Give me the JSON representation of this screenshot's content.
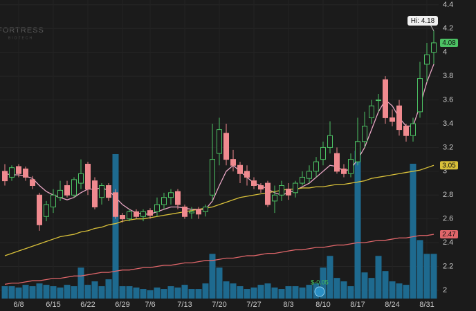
{
  "chart_data": {
    "type": "candlestick",
    "watermark": "FORTRESS",
    "watermark_sub": "BIOTECH",
    "categories": [
      null,
      null,
      "6/8",
      null,
      null,
      null,
      null,
      "6/15",
      null,
      null,
      null,
      null,
      "6/22",
      null,
      null,
      null,
      null,
      "6/29",
      null,
      null,
      null,
      "7/6",
      null,
      null,
      null,
      null,
      "7/13",
      null,
      null,
      null,
      null,
      "7/20",
      null,
      null,
      null,
      null,
      "7/27",
      null,
      null,
      null,
      null,
      "8/3",
      null,
      null,
      null,
      null,
      "8/10",
      null,
      null,
      null,
      null,
      "8/17",
      null,
      null,
      null,
      null,
      "8/24",
      null,
      null,
      null,
      null,
      "8/31",
      null
    ],
    "open": [
      3.0,
      2.95,
      3.04,
      3.02,
      2.93,
      2.8,
      2.62,
      2.7,
      2.78,
      2.88,
      2.8,
      2.9,
      3.06,
      2.92,
      2.78,
      2.88,
      2.82,
      2.63,
      2.6,
      2.66,
      2.62,
      2.67,
      2.66,
      2.72,
      2.78,
      2.83,
      2.7,
      2.65,
      2.68,
      2.66,
      2.8,
      3.15,
      3.32,
      3.1,
      3.05,
      3.0,
      2.92,
      2.88,
      2.9,
      2.75,
      2.8,
      2.85,
      2.82,
      2.9,
      2.94,
      3.0,
      3.1,
      3.2,
      3.15,
      3.02,
      2.98,
      3.08,
      3.25,
      3.45,
      3.6,
      3.77,
      3.45,
      3.55,
      3.38,
      3.3,
      3.5,
      3.9,
      4.0
    ],
    "high": [
      3.06,
      3.05,
      3.06,
      3.04,
      2.96,
      2.82,
      2.75,
      2.85,
      2.92,
      2.92,
      2.95,
      3.1,
      3.08,
      2.95,
      2.9,
      2.9,
      2.85,
      2.65,
      2.68,
      2.68,
      2.68,
      2.69,
      2.78,
      2.82,
      2.85,
      2.85,
      2.72,
      2.7,
      2.7,
      2.72,
      3.4,
      3.45,
      3.4,
      3.18,
      3.08,
      3.05,
      2.95,
      2.9,
      2.92,
      2.88,
      2.92,
      2.9,
      2.92,
      3.0,
      3.05,
      3.12,
      3.25,
      3.42,
      3.2,
      3.06,
      3.15,
      3.45,
      3.5,
      3.6,
      3.65,
      3.8,
      3.52,
      3.6,
      3.4,
      3.45,
      3.92,
      4.08,
      4.18
    ],
    "low": [
      2.88,
      2.92,
      2.95,
      2.92,
      2.85,
      2.5,
      2.58,
      2.65,
      2.75,
      2.78,
      2.78,
      2.85,
      2.8,
      2.68,
      2.72,
      2.75,
      2.6,
      2.57,
      2.58,
      2.6,
      2.58,
      2.6,
      2.62,
      2.68,
      2.72,
      2.68,
      2.6,
      2.6,
      2.6,
      2.62,
      2.75,
      3.05,
      3.05,
      3.0,
      2.9,
      2.88,
      2.85,
      2.82,
      2.7,
      2.65,
      2.75,
      2.76,
      2.78,
      2.88,
      2.9,
      2.95,
      3.05,
      3.15,
      2.98,
      2.95,
      2.95,
      3.05,
      3.2,
      3.4,
      3.5,
      3.4,
      3.38,
      3.3,
      3.25,
      3.25,
      3.45,
      3.75,
      3.9
    ],
    "close": [
      2.92,
      3.03,
      2.98,
      2.95,
      2.88,
      2.55,
      2.72,
      2.8,
      2.84,
      2.8,
      2.93,
      2.98,
      2.85,
      2.7,
      2.88,
      2.78,
      2.62,
      2.6,
      2.66,
      2.62,
      2.66,
      2.63,
      2.72,
      2.78,
      2.82,
      2.72,
      2.62,
      2.66,
      2.64,
      2.7,
      3.1,
      3.35,
      3.1,
      3.05,
      2.98,
      2.95,
      2.88,
      2.85,
      2.72,
      2.8,
      2.88,
      2.8,
      2.9,
      2.95,
      3.0,
      3.08,
      3.2,
      3.3,
      3.0,
      2.98,
      3.1,
      3.25,
      3.38,
      3.55,
      3.6,
      3.45,
      3.42,
      3.35,
      3.3,
      3.4,
      3.78,
      3.98,
      4.08
    ],
    "volume": [
      18,
      18,
      16,
      20,
      18,
      22,
      20,
      18,
      16,
      20,
      18,
      45,
      20,
      25,
      18,
      28,
      210,
      18,
      18,
      16,
      14,
      12,
      16,
      14,
      18,
      16,
      20,
      14,
      14,
      22,
      65,
      45,
      25,
      22,
      18,
      14,
      16,
      20,
      22,
      16,
      14,
      18,
      18,
      16,
      20,
      22,
      45,
      62,
      30,
      25,
      18,
      215,
      38,
      30,
      62,
      40,
      25,
      22,
      20,
      196,
      85,
      65,
      65
    ],
    "up_color": "#4cc264",
    "down_color": "#f08a8f",
    "volume_color": "#1e6a8f",
    "series": [
      {
        "color": "#e8a6c4",
        "values": [
          2.98,
          2.97,
          2.97,
          2.96,
          2.94,
          2.88,
          2.83,
          2.8,
          2.78,
          2.76,
          2.78,
          2.82,
          2.85,
          2.85,
          2.86,
          2.84,
          2.78,
          2.72,
          2.68,
          2.65,
          2.64,
          2.64,
          2.66,
          2.68,
          2.7,
          2.7,
          2.69,
          2.68,
          2.68,
          2.68,
          2.75,
          2.88,
          3.0,
          3.05,
          3.0,
          2.95,
          2.9,
          2.88,
          2.85,
          2.82,
          2.8,
          2.82,
          2.84,
          2.87,
          2.9,
          2.95,
          3.0,
          3.05,
          3.04,
          3.0,
          3.02,
          3.1,
          3.2,
          3.35,
          3.5,
          3.6,
          3.55,
          3.45,
          3.38,
          3.38,
          3.55,
          3.75,
          3.9
        ]
      },
      {
        "color": "#d9c13a",
        "values": [
          2.29,
          2.31,
          2.33,
          2.35,
          2.37,
          2.39,
          2.41,
          2.43,
          2.45,
          2.46,
          2.47,
          2.49,
          2.5,
          2.52,
          2.53,
          2.55,
          2.56,
          2.58,
          2.59,
          2.6,
          2.6,
          2.61,
          2.62,
          2.63,
          2.64,
          2.65,
          2.66,
          2.67,
          2.68,
          2.69,
          2.7,
          2.72,
          2.74,
          2.76,
          2.78,
          2.79,
          2.8,
          2.81,
          2.82,
          2.83,
          2.84,
          2.85,
          2.85,
          2.86,
          2.86,
          2.87,
          2.87,
          2.88,
          2.89,
          2.89,
          2.9,
          2.91,
          2.92,
          2.94,
          2.95,
          2.96,
          2.97,
          2.98,
          2.99,
          3.0,
          3.01,
          3.03,
          3.05
        ]
      },
      {
        "color": "#e0666a",
        "values": [
          2.05,
          2.06,
          2.06,
          2.07,
          2.08,
          2.08,
          2.09,
          2.1,
          2.1,
          2.11,
          2.12,
          2.12,
          2.13,
          2.14,
          2.15,
          2.15,
          2.16,
          2.17,
          2.17,
          2.18,
          2.19,
          2.19,
          2.2,
          2.21,
          2.21,
          2.22,
          2.23,
          2.23,
          2.24,
          2.25,
          2.25,
          2.26,
          2.27,
          2.27,
          2.28,
          2.29,
          2.29,
          2.3,
          2.31,
          2.31,
          2.32,
          2.33,
          2.34,
          2.34,
          2.35,
          2.36,
          2.36,
          2.37,
          2.38,
          2.38,
          2.39,
          2.4,
          2.4,
          2.41,
          2.42,
          2.42,
          2.43,
          2.44,
          2.44,
          2.45,
          2.46,
          2.46,
          2.47
        ]
      }
    ],
    "hi_label": {
      "value": 4.18,
      "label": "Hi: 4.18"
    },
    "earnings": {
      "date": "8/10",
      "label": "$-0.05"
    },
    "ylim": [
      1.93,
      4.44
    ],
    "yticks": [
      2,
      2.2,
      2.4,
      2.6,
      2.8,
      3,
      3.2,
      3.4,
      3.6,
      3.8,
      4,
      4.2,
      4.4
    ],
    "grid": true
  }
}
